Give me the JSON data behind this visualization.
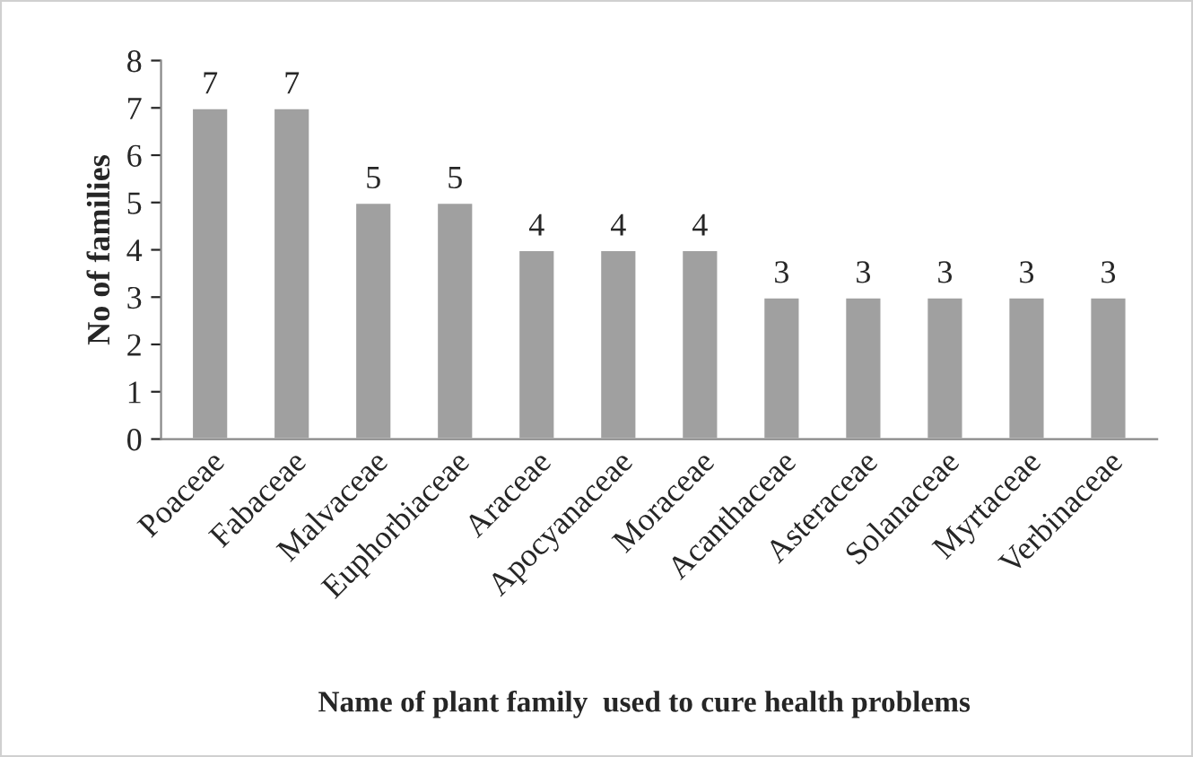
{
  "chart_data": {
    "type": "bar",
    "categories": [
      "Poaceae",
      "Fabaceae",
      "Malvaceae",
      "Euphorbiaceae",
      "Araceae",
      "Apocyanaceae",
      "Moraceae",
      "Acanthaceae",
      "Asteraceae",
      "Solanaceae",
      "Myrtaceae",
      "Verbinaceae"
    ],
    "values": [
      7,
      7,
      5,
      5,
      4,
      4,
      4,
      3,
      3,
      3,
      3,
      3
    ],
    "color": "#a0a0a0",
    "xlabel": "Name of plant family  used to cure health problems",
    "ylabel": "No of families",
    "ylim": [
      0,
      8
    ],
    "yticks": [
      0,
      1,
      2,
      3,
      4,
      5,
      6,
      7,
      8
    ],
    "data_labels": true,
    "grid": false,
    "legend": false
  }
}
